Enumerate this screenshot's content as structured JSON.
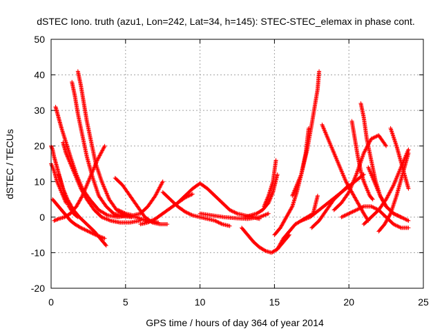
{
  "chart_data": {
    "type": "scatter",
    "title": "dSTEC Iono. truth (azu1, Lon=242, Lat=34, h=145): STEC-STEC_elemax in phase cont.",
    "xlabel": "GPS time / hours of day 364 of year 2014",
    "ylabel": "dSTEC  / TECUs",
    "xlim": [
      0,
      25
    ],
    "ylim": [
      -20,
      50
    ],
    "xticks": [
      0,
      5,
      10,
      15,
      20,
      25
    ],
    "yticks": [
      -20,
      -10,
      0,
      10,
      20,
      30,
      40,
      50
    ],
    "grid": true,
    "marker": "+",
    "color": "#ff0000",
    "series": [
      {
        "x": [
          0.0,
          0.1,
          0.2,
          0.4,
          0.6,
          0.8,
          1.0,
          1.2,
          1.5,
          1.8
        ],
        "y": [
          20,
          19,
          17,
          14,
          11,
          8,
          5,
          3,
          1,
          0
        ]
      },
      {
        "x": [
          0.0,
          0.2,
          0.4,
          0.6,
          0.8,
          1.0
        ],
        "y": [
          15,
          13,
          10,
          8,
          6,
          4
        ]
      },
      {
        "x": [
          0.1,
          0.3,
          0.5,
          0.7,
          0.9,
          1.1,
          1.3,
          1.6,
          2.0,
          2.5,
          3.0,
          3.6
        ],
        "y": [
          5,
          4,
          3,
          2,
          1,
          0,
          -1,
          -2,
          -3,
          -4,
          -5,
          -6
        ]
      },
      {
        "x": [
          0.3,
          0.5,
          0.7,
          1.0,
          1.3,
          1.7,
          2.1,
          2.6,
          3.2,
          3.8,
          4.5,
          5.2
        ],
        "y": [
          31,
          28,
          25,
          21,
          17,
          12,
          8,
          5,
          2,
          0.5,
          0,
          0.5
        ]
      },
      {
        "x": [
          0.8,
          1.0,
          1.3,
          1.6,
          2.0,
          2.4,
          2.9,
          3.4,
          4.0,
          4.6,
          5.3,
          6.0
        ],
        "y": [
          21,
          18,
          15,
          12,
          8,
          5,
          2,
          0,
          -1,
          -1.5,
          -1.5,
          -1
        ]
      },
      {
        "x": [
          1.4,
          1.6,
          1.8,
          2.1,
          2.4,
          2.8,
          3.2,
          3.7,
          4.2,
          4.8,
          5.4
        ],
        "y": [
          38,
          34,
          29,
          23,
          17,
          11,
          6,
          3,
          1,
          0.3,
          0
        ]
      },
      {
        "x": [
          1.8,
          2.0,
          2.2,
          2.4,
          2.7,
          3.0,
          3.4,
          3.9,
          4.4,
          5.0,
          5.7,
          6.4,
          7.2
        ],
        "y": [
          41,
          37,
          32,
          27,
          21,
          15,
          10,
          5,
          2,
          0.5,
          0,
          -1,
          -1.5
        ]
      },
      {
        "x": [
          0.5,
          0.8,
          1.1,
          1.5,
          1.9,
          2.4,
          2.9,
          3.3,
          3.7
        ],
        "y": [
          12,
          8,
          5,
          2,
          0,
          -2,
          -4,
          -6,
          -8
        ]
      },
      {
        "x": [
          0.2,
          0.5,
          0.9,
          1.3,
          1.7,
          2.1,
          2.6,
          3.1,
          3.6
        ],
        "y": [
          -1,
          -0.5,
          0,
          1,
          3,
          6,
          11,
          16,
          20
        ]
      },
      {
        "x": [
          4.3,
          4.8,
          5.3,
          5.8,
          6.3,
          6.8,
          7.3,
          7.8
        ],
        "y": [
          11,
          9,
          6,
          3,
          0,
          -1.5,
          -2,
          -2
        ]
      },
      {
        "x": [
          4.5,
          5.0,
          5.5,
          6.0,
          6.5,
          7.0,
          7.5
        ],
        "y": [
          2,
          1,
          0.5,
          1,
          3,
          6,
          10
        ]
      },
      {
        "x": [
          6.0,
          6.5,
          7.0,
          7.5,
          8.0,
          8.5,
          9.0,
          9.5
        ],
        "y": [
          -2,
          -1.5,
          -0.5,
          1,
          2.5,
          4,
          5.5,
          6.5
        ]
      },
      {
        "x": [
          7.5,
          8.0,
          8.5,
          9.0,
          9.5,
          10.0,
          10.5,
          11.0,
          11.5,
          12.0
        ],
        "y": [
          7,
          5,
          3,
          1.5,
          0.5,
          0,
          -0.5,
          -1,
          -2,
          -2.5
        ]
      },
      {
        "x": [
          8.5,
          9.0,
          9.5,
          10.0,
          10.5,
          11.0,
          11.5,
          12.0,
          12.5,
          13.0,
          13.5,
          14.0
        ],
        "y": [
          4,
          6,
          8,
          9.5,
          8,
          6,
          4,
          2,
          1,
          0.5,
          0,
          -0.5
        ]
      },
      {
        "x": [
          10.0,
          10.8,
          11.6,
          12.4,
          13.2,
          14.0,
          14.6
        ],
        "y": [
          1,
          0.5,
          0,
          -0.3,
          -0.5,
          0,
          1
        ]
      },
      {
        "x": [
          12.8,
          13.2,
          13.6,
          14.0,
          14.4,
          14.8,
          15.2,
          15.6,
          16.0
        ],
        "y": [
          -3,
          -5,
          -7,
          -8.5,
          -9.5,
          -10,
          -9,
          -7,
          -5
        ]
      },
      {
        "x": [
          13.0,
          13.4,
          13.8,
          14.2,
          14.6,
          14.9,
          15.2
        ],
        "y": [
          0,
          0.5,
          1,
          2,
          4,
          7,
          12
        ]
      },
      {
        "x": [
          14.3,
          14.6,
          14.9,
          15.1
        ],
        "y": [
          3,
          6,
          10,
          16
        ]
      },
      {
        "x": [
          15.0,
          15.4,
          15.8,
          16.2,
          16.5,
          16.8,
          17.1,
          17.3
        ],
        "y": [
          -5,
          -3,
          0,
          3,
          7,
          12,
          18,
          25
        ]
      },
      {
        "x": [
          15.2,
          15.6,
          16.0,
          16.4,
          16.8,
          17.2,
          17.6,
          17.9
        ],
        "y": [
          -9,
          -6,
          -4,
          -2,
          -1,
          0,
          1,
          6
        ]
      },
      {
        "x": [
          16.2,
          16.8,
          17.2,
          17.5,
          17.7,
          17.9,
          18.0
        ],
        "y": [
          6,
          12,
          19,
          26,
          31,
          36,
          41
        ]
      },
      {
        "x": [
          16.8,
          17.4,
          18.0,
          18.6,
          19.2,
          19.8,
          20.4,
          21.0
        ],
        "y": [
          -1,
          0,
          2,
          4,
          6,
          8,
          10,
          12
        ]
      },
      {
        "x": [
          18.2,
          18.6,
          19.0,
          19.4,
          19.8,
          20.2,
          20.6,
          21.0,
          21.3
        ],
        "y": [
          26,
          22,
          18,
          14,
          10,
          7,
          4,
          1,
          -1
        ]
      },
      {
        "x": [
          19.0,
          19.5,
          20.0,
          20.5,
          21.0,
          21.5,
          22.0,
          22.5
        ],
        "y": [
          2,
          4,
          7,
          12,
          18,
          22,
          23,
          20
        ]
      },
      {
        "x": [
          20.2,
          20.4,
          20.6,
          20.8,
          21.0,
          21.2,
          21.4,
          21.6
        ],
        "y": [
          27,
          22,
          17,
          13,
          10,
          8,
          6,
          5
        ]
      },
      {
        "x": [
          20.8,
          21.0,
          21.2,
          21.5,
          21.8,
          22.1,
          22.5,
          23.0,
          23.5
        ],
        "y": [
          32,
          28,
          22,
          16,
          10,
          6,
          3,
          1,
          0
        ]
      },
      {
        "x": [
          21.3,
          21.7,
          22.1,
          22.5,
          23.0,
          23.5,
          24.0
        ],
        "y": [
          14,
          10,
          6,
          3,
          1,
          0,
          -1
        ]
      },
      {
        "x": [
          22.0,
          22.4,
          22.8,
          23.2,
          23.6,
          24.0
        ],
        "y": [
          -4,
          -2,
          1,
          6,
          12,
          18
        ]
      },
      {
        "x": [
          22.8,
          23.2,
          23.6,
          24.0
        ],
        "y": [
          25,
          20,
          14,
          8
        ]
      },
      {
        "x": [
          21.0,
          21.5,
          22.0,
          22.5,
          23.0,
          23.5,
          24.0
        ],
        "y": [
          -2,
          0,
          2,
          5,
          9,
          14,
          19
        ]
      },
      {
        "x": [
          19.5,
          20.0,
          20.5,
          21.0,
          21.5,
          22.0,
          22.5,
          23.0,
          23.5,
          24.0
        ],
        "y": [
          0,
          1,
          2,
          3,
          3,
          2,
          0,
          -2,
          -3,
          -3
        ]
      },
      {
        "x": [
          17.5,
          18.0,
          18.5,
          19.0,
          19.5,
          20.0
        ],
        "y": [
          -3,
          -1,
          2,
          5,
          7,
          9
        ]
      }
    ]
  }
}
